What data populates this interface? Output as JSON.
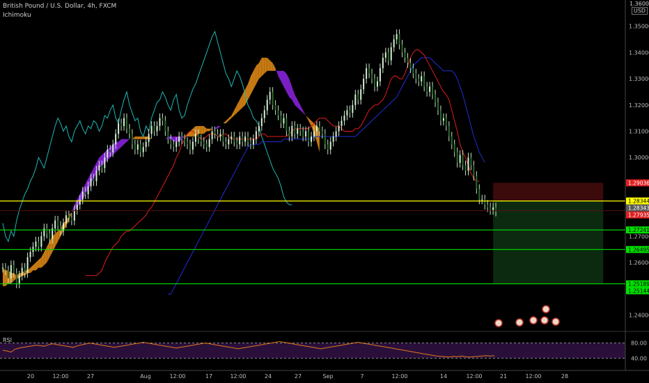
{
  "header": {
    "symbol_line": "British Pound / U.S. Dollar, 4h, FXCM",
    "indicator": "Ichimoku"
  },
  "price_axis": {
    "currency": "USD",
    "top_value": "1.36000"
  },
  "rsi_panel": {
    "label": "RSI",
    "levels": [
      "80.00",
      "40.00"
    ]
  },
  "colors": {
    "background": "#000000",
    "conversion_line": "#e11d1d",
    "base_line": "#1f2fd6",
    "lagging_span": "#1fb8b8",
    "cloud_bull": "#c77a12",
    "cloud_bear": "#7b1fc7",
    "candle": "#c8e6c9",
    "rsi_line": "#e07a1a",
    "rsi_band": "#2a0f3a",
    "yellow_line": "#ffff00",
    "green_line": "#00e000",
    "stop_zone": "#3b0a0a",
    "target_zone": "#0b2a10"
  },
  "chart_data": {
    "type": "line",
    "title": "British Pound / U.S. Dollar, 4h, FXCM",
    "xlabel": "",
    "ylabel": "",
    "ylim": [
      1.234,
      1.36
    ],
    "y_ticks": [
      "1.35000",
      "1.34000",
      "1.33000",
      "1.32000",
      "1.31000",
      "1.30000",
      "1.27000",
      "1.26000",
      "1.24000"
    ],
    "x_ticks": [
      "20",
      "12:00",
      "27",
      "Aug",
      "12:00",
      "17",
      "12:00",
      "24",
      "27",
      "Sep",
      "7",
      "12:00",
      "14",
      "12:00",
      "21",
      "12:00",
      "28"
    ],
    "price_labels": [
      {
        "value": 1.29036,
        "text": "1.29036",
        "color": "#e02020"
      },
      {
        "value": 1.28344,
        "text": "1.28344",
        "color": "#ffff00"
      },
      {
        "value": 1.28343,
        "text": "1.28343",
        "color": "#5a5a5a"
      },
      {
        "value": 1.27935,
        "text": "1.27935",
        "color": "#e02020"
      },
      {
        "value": 1.27241,
        "text": "1.27241",
        "color": "#00e000"
      },
      {
        "value": 1.26495,
        "text": "1.26495",
        "color": "#00e000"
      },
      {
        "value": 1.25189,
        "text": "1.25189",
        "color": "#00e000"
      },
      {
        "value": 1.25144,
        "text": "1.25144",
        "color": "#00e000"
      }
    ],
    "horizontal_lines": [
      {
        "value": 1.28344,
        "color": "#ffff00"
      },
      {
        "value": 1.27241,
        "color": "#00e000"
      },
      {
        "value": 1.26495,
        "color": "#00e000"
      },
      {
        "value": 1.25189,
        "color": "#00e000"
      }
    ],
    "position_tool": {
      "entry": 1.28344,
      "stop": 1.29036,
      "target": 1.25189,
      "x_start_index": 178,
      "x_end_index": 218
    },
    "series": [
      {
        "role": "close",
        "values": [
          1.258,
          1.257,
          1.254,
          1.259,
          1.256,
          1.252,
          1.255,
          1.258,
          1.256,
          1.262,
          1.264,
          1.266,
          1.268,
          1.266,
          1.27,
          1.273,
          1.271,
          1.269,
          1.273,
          1.276,
          1.274,
          1.272,
          1.275,
          1.278,
          1.277,
          1.276,
          1.28,
          1.282,
          1.284,
          1.287,
          1.286,
          1.289,
          1.292,
          1.291,
          1.295,
          1.297,
          1.296,
          1.3,
          1.303,
          1.302,
          1.305,
          1.309,
          1.313,
          1.312,
          1.315,
          1.311,
          1.309,
          1.305,
          1.303,
          1.305,
          1.302,
          1.304,
          1.306,
          1.309,
          1.312,
          1.31,
          1.312,
          1.315,
          1.314,
          1.31,
          1.307,
          1.305,
          1.304,
          1.306,
          1.308,
          1.307,
          1.306,
          1.305,
          1.303,
          1.306,
          1.309,
          1.307,
          1.306,
          1.305,
          1.304,
          1.307,
          1.31,
          1.309,
          1.308,
          1.309,
          1.306,
          1.305,
          1.307,
          1.308,
          1.306,
          1.305,
          1.308,
          1.306,
          1.308,
          1.306,
          1.305,
          1.307,
          1.31,
          1.312,
          1.315,
          1.318,
          1.322,
          1.325,
          1.32,
          1.318,
          1.316,
          1.313,
          1.315,
          1.31,
          1.308,
          1.312,
          1.309,
          1.311,
          1.31,
          1.308,
          1.31,
          1.306,
          1.308,
          1.31,
          1.312,
          1.31,
          1.309,
          1.305,
          1.303,
          1.306,
          1.308,
          1.31,
          1.312,
          1.314,
          1.316,
          1.318,
          1.317,
          1.32,
          1.324,
          1.322,
          1.326,
          1.33,
          1.334,
          1.332,
          1.33,
          1.327,
          1.329,
          1.334,
          1.338,
          1.34,
          1.337,
          1.342,
          1.345,
          1.347,
          1.343,
          1.34,
          1.338,
          1.336,
          1.334,
          1.332,
          1.33,
          1.329,
          1.331,
          1.327,
          1.325,
          1.327,
          1.324,
          1.321,
          1.318,
          1.314,
          1.315,
          1.312,
          1.308,
          1.305,
          1.302,
          1.298,
          1.301,
          1.297,
          1.295,
          1.3,
          1.297,
          1.293,
          1.288,
          1.284,
          1.284,
          1.282,
          1.281,
          1.28,
          1.281,
          1.2794
        ]
      },
      {
        "role": "conversion_line",
        "values": [
          1.255,
          1.255,
          1.255,
          1.255,
          1.255,
          1.256,
          1.257,
          1.26,
          1.262,
          1.264,
          1.266,
          1.267,
          1.268,
          1.27,
          1.271,
          1.272,
          1.272,
          1.273,
          1.274,
          1.275,
          1.276,
          1.277,
          1.278,
          1.28,
          1.281,
          1.283,
          1.285,
          1.287,
          1.289,
          1.291,
          1.293,
          1.295,
          1.297,
          1.3,
          1.302,
          1.305,
          1.307,
          1.309,
          1.31,
          1.31,
          1.309,
          1.308,
          1.307,
          1.307,
          1.308,
          1.309,
          1.309,
          1.309,
          1.308,
          1.308,
          1.309,
          1.309,
          1.308,
          1.307,
          1.307,
          1.307,
          1.307,
          1.307,
          1.307,
          1.307,
          1.307,
          1.307,
          1.307,
          1.308,
          1.309,
          1.309,
          1.308,
          1.308,
          1.308,
          1.308,
          1.308,
          1.308,
          1.308,
          1.308,
          1.309,
          1.31,
          1.311,
          1.311,
          1.311,
          1.311,
          1.311,
          1.311,
          1.312,
          1.313,
          1.314,
          1.315,
          1.315,
          1.315,
          1.314,
          1.313,
          1.312,
          1.312,
          1.312,
          1.311,
          1.31,
          1.31,
          1.31,
          1.31,
          1.311,
          1.311,
          1.312,
          1.314,
          1.316,
          1.318,
          1.319,
          1.32,
          1.32,
          1.321,
          1.322,
          1.324,
          1.327,
          1.33,
          1.331,
          1.331,
          1.33,
          1.33,
          1.332,
          1.335,
          1.338,
          1.34,
          1.341,
          1.341,
          1.34,
          1.339,
          1.337,
          1.335,
          1.333,
          1.331,
          1.329,
          1.327,
          1.325,
          1.324,
          1.322,
          1.318,
          1.314,
          1.31,
          1.305,
          1.302,
          1.3,
          1.297,
          1.294,
          1.292,
          1.291,
          1.291
        ]
      },
      {
        "role": "base_line",
        "values": [
          1.248,
          1.248,
          1.25,
          1.252,
          1.254,
          1.256,
          1.258,
          1.26,
          1.262,
          1.264,
          1.266,
          1.268,
          1.27,
          1.272,
          1.274,
          1.276,
          1.278,
          1.28,
          1.282,
          1.284,
          1.286,
          1.288,
          1.29,
          1.292,
          1.294,
          1.296,
          1.298,
          1.3,
          1.302,
          1.304,
          1.305,
          1.305,
          1.305,
          1.305,
          1.306,
          1.306,
          1.306,
          1.306,
          1.306,
          1.306,
          1.306,
          1.306,
          1.307,
          1.307,
          1.307,
          1.307,
          1.307,
          1.307,
          1.307,
          1.307,
          1.307,
          1.307,
          1.307,
          1.308,
          1.308,
          1.308,
          1.308,
          1.308,
          1.308,
          1.308,
          1.308,
          1.308,
          1.308,
          1.308,
          1.308,
          1.308,
          1.308,
          1.308,
          1.308,
          1.309,
          1.31,
          1.311,
          1.312,
          1.313,
          1.314,
          1.315,
          1.316,
          1.317,
          1.318,
          1.319,
          1.32,
          1.321,
          1.322,
          1.323,
          1.325,
          1.327,
          1.329,
          1.331,
          1.333,
          1.335,
          1.336,
          1.337,
          1.338,
          1.338,
          1.338,
          1.338,
          1.337,
          1.336,
          1.335,
          1.334,
          1.333,
          1.333,
          1.333,
          1.333,
          1.332,
          1.33,
          1.327,
          1.324,
          1.32,
          1.316,
          1.312,
          1.308,
          1.305,
          1.302,
          1.3,
          1.298
        ]
      },
      {
        "role": "lagging_span",
        "values": [
          1.275,
          1.27,
          1.268,
          1.272,
          1.27,
          1.276,
          1.28,
          1.283,
          1.286,
          1.288,
          1.291,
          1.293,
          1.296,
          1.3,
          1.298,
          1.296,
          1.3,
          1.304,
          1.308,
          1.312,
          1.315,
          1.313,
          1.31,
          1.312,
          1.308,
          1.306,
          1.31,
          1.312,
          1.314,
          1.311,
          1.309,
          1.312,
          1.311,
          1.314,
          1.313,
          1.31,
          1.312,
          1.316,
          1.315,
          1.318,
          1.32,
          1.315,
          1.313,
          1.318,
          1.322,
          1.325,
          1.32,
          1.317,
          1.314,
          1.315,
          1.31,
          1.308,
          1.312,
          1.31,
          1.315,
          1.318,
          1.321,
          1.322,
          1.325,
          1.323,
          1.32,
          1.318,
          1.322,
          1.324,
          1.318,
          1.315,
          1.316,
          1.32,
          1.323,
          1.326,
          1.328,
          1.331,
          1.334,
          1.337,
          1.34,
          1.343,
          1.346,
          1.348,
          1.344,
          1.34,
          1.336,
          1.332,
          1.33,
          1.327,
          1.33,
          1.333,
          1.331,
          1.328,
          1.324,
          1.32,
          1.318,
          1.315,
          1.314,
          1.312,
          1.308,
          1.305,
          1.302,
          1.299,
          1.296,
          1.294,
          1.292,
          1.289,
          1.285,
          1.283,
          1.282,
          1.282
        ]
      },
      {
        "role": "cloud_span_a",
        "values": [
          1.258,
          1.257,
          1.257,
          1.256,
          1.256,
          1.255,
          1.256,
          1.256,
          1.257,
          1.257,
          1.258,
          1.259,
          1.26,
          1.261,
          1.262,
          1.264,
          1.266,
          1.268,
          1.27,
          1.271,
          1.272,
          1.273,
          1.275,
          1.276,
          1.278,
          1.279,
          1.28,
          1.281,
          1.283,
          1.284,
          1.286,
          1.288,
          1.29,
          1.292,
          1.294,
          1.296,
          1.297,
          1.298,
          1.299,
          1.3,
          1.301,
          1.302,
          1.303,
          1.304,
          1.305,
          1.306,
          1.307,
          1.307,
          1.308,
          1.308,
          1.308,
          1.308,
          1.308,
          1.308,
          1.307,
          1.307,
          1.307,
          1.307,
          1.307,
          1.307,
          1.307,
          1.307,
          1.306,
          1.306,
          1.306,
          1.307,
          1.308,
          1.309,
          1.31,
          1.311,
          1.312,
          1.312,
          1.312,
          1.312,
          1.311,
          1.311,
          1.311,
          1.311,
          1.311,
          1.312,
          1.313,
          1.314,
          1.315,
          1.316,
          1.318,
          1.32,
          1.322,
          1.324,
          1.326,
          1.328,
          1.331,
          1.333,
          1.335,
          1.336,
          1.338,
          1.338,
          1.338,
          1.337,
          1.336,
          1.334,
          1.331,
          1.329,
          1.327,
          1.325,
          1.323,
          1.322,
          1.32,
          1.319,
          1.318,
          1.317,
          1.316,
          1.315,
          1.314,
          1.313,
          1.312,
          1.311
        ]
      },
      {
        "role": "cloud_span_b",
        "values": [
          1.251,
          1.251,
          1.252,
          1.252,
          1.253,
          1.254,
          1.254,
          1.255,
          1.255,
          1.256,
          1.256,
          1.257,
          1.257,
          1.258,
          1.258,
          1.259,
          1.26,
          1.262,
          1.264,
          1.266,
          1.268,
          1.27,
          1.272,
          1.274,
          1.276,
          1.279,
          1.282,
          1.284,
          1.286,
          1.288,
          1.29,
          1.292,
          1.294,
          1.296,
          1.298,
          1.3,
          1.301,
          1.302,
          1.303,
          1.304,
          1.305,
          1.306,
          1.306,
          1.307,
          1.307,
          1.307,
          1.307,
          1.307,
          1.307,
          1.307,
          1.307,
          1.307,
          1.307,
          1.307,
          1.307,
          1.307,
          1.307,
          1.307,
          1.307,
          1.307,
          1.308,
          1.308,
          1.308,
          1.308,
          1.308,
          1.308,
          1.308,
          1.308,
          1.308,
          1.308,
          1.308,
          1.309,
          1.309,
          1.309,
          1.31,
          1.31,
          1.311,
          1.311,
          1.312,
          1.312,
          1.313,
          1.313,
          1.314,
          1.315,
          1.316,
          1.317,
          1.318,
          1.319,
          1.32,
          1.322,
          1.324,
          1.326,
          1.328,
          1.33,
          1.331,
          1.332,
          1.333,
          1.333,
          1.333,
          1.333,
          1.333,
          1.333,
          1.333,
          1.332,
          1.33,
          1.327,
          1.324,
          1.322,
          1.32,
          1.318,
          1.316,
          1.314,
          1.312,
          1.309,
          1.306,
          1.302
        ]
      },
      {
        "role": "rsi",
        "values": [
          52,
          50,
          47,
          55,
          58,
          60,
          62,
          64,
          66,
          65,
          63,
          67,
          70,
          68,
          66,
          64,
          62,
          60,
          64,
          67,
          69,
          72,
          70,
          68,
          66,
          64,
          62,
          60,
          62,
          64,
          66,
          68,
          70,
          72,
          74,
          72,
          70,
          68,
          66,
          64,
          62,
          60,
          58,
          60,
          62,
          64,
          66,
          68,
          70,
          72,
          70,
          68,
          66,
          64,
          62,
          60,
          58,
          56,
          58,
          60,
          62,
          64,
          66,
          68,
          70,
          72,
          74,
          76,
          74,
          72,
          70,
          68,
          66,
          64,
          62,
          60,
          58,
          56,
          58,
          60,
          62,
          64,
          66,
          68,
          70,
          72,
          74,
          72,
          70,
          68,
          66,
          64,
          62,
          60,
          58,
          56,
          54,
          52,
          50,
          48,
          46,
          44,
          42,
          40,
          38,
          36,
          35,
          34,
          33,
          35,
          34,
          36,
          34,
          33,
          34,
          35,
          36,
          37,
          36,
          37
        ]
      }
    ]
  }
}
